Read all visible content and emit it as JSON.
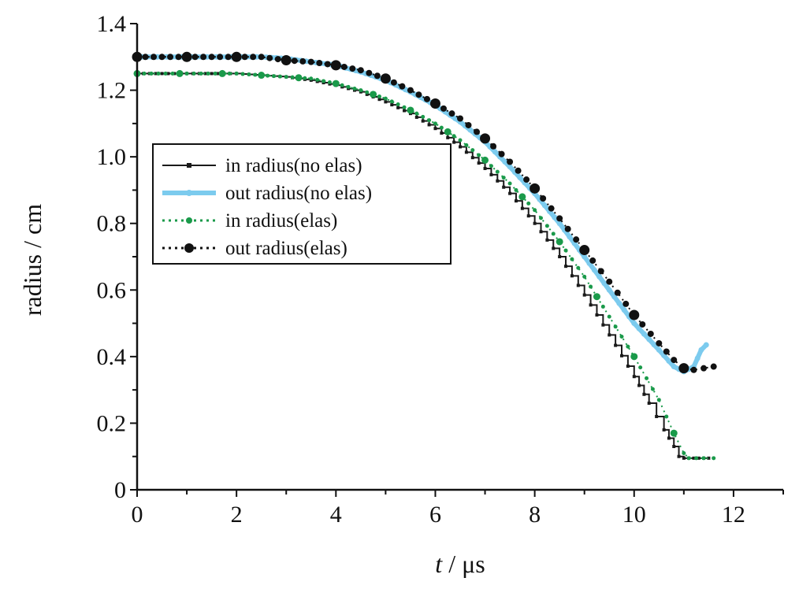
{
  "chart_data": {
    "type": "line",
    "title": "",
    "xlabel": "t / μs",
    "xlabel_var": "t",
    "xlabel_unit": " / μs",
    "ylabel": "radius / cm",
    "xlim": [
      0,
      13
    ],
    "ylim": [
      0,
      1.4
    ],
    "x_ticks": [
      "0",
      "2",
      "4",
      "6",
      "8",
      "10",
      "12"
    ],
    "y_ticks": [
      "0",
      "0.2",
      "0.4",
      "0.6",
      "0.8",
      "1.0",
      "1.2",
      "1.4"
    ],
    "grid": false,
    "legend_position": "center-left",
    "series": [
      {
        "name": "in radius(no elas)",
        "color": "#1a1a1a",
        "style": "solid-step",
        "marker": "square",
        "points": [
          [
            0,
            1.25
          ],
          [
            1,
            1.25
          ],
          [
            2,
            1.25
          ],
          [
            2.5,
            1.245
          ],
          [
            3,
            1.24
          ],
          [
            3.5,
            1.23
          ],
          [
            4,
            1.215
          ],
          [
            4.5,
            1.195
          ],
          [
            5,
            1.165
          ],
          [
            5.5,
            1.13
          ],
          [
            6,
            1.085
          ],
          [
            6.5,
            1.03
          ],
          [
            7,
            0.965
          ],
          [
            7.5,
            0.89
          ],
          [
            8,
            0.8
          ],
          [
            8.5,
            0.7
          ],
          [
            9,
            0.585
          ],
          [
            9.5,
            0.465
          ],
          [
            10,
            0.34
          ],
          [
            10.3,
            0.26
          ],
          [
            10.6,
            0.18
          ],
          [
            10.8,
            0.13
          ],
          [
            10.9,
            0.1
          ],
          [
            11,
            0.095
          ],
          [
            11.3,
            0.095
          ],
          [
            11.5,
            0.095
          ]
        ]
      },
      {
        "name": "out radius(no elas)",
        "color": "#7ccbee",
        "style": "thick",
        "marker": "circle",
        "points": [
          [
            0,
            1.3
          ],
          [
            1,
            1.3
          ],
          [
            2,
            1.3
          ],
          [
            2.5,
            1.3
          ],
          [
            3,
            1.295
          ],
          [
            3.5,
            1.285
          ],
          [
            4,
            1.275
          ],
          [
            4.5,
            1.255
          ],
          [
            5,
            1.23
          ],
          [
            5.5,
            1.195
          ],
          [
            6,
            1.155
          ],
          [
            6.5,
            1.105
          ],
          [
            7,
            1.045
          ],
          [
            7.5,
            0.97
          ],
          [
            8,
            0.89
          ],
          [
            8.5,
            0.8
          ],
          [
            9,
            0.7
          ],
          [
            9.5,
            0.6
          ],
          [
            10,
            0.5
          ],
          [
            10.5,
            0.42
          ],
          [
            10.8,
            0.37
          ],
          [
            11,
            0.355
          ],
          [
            11.2,
            0.37
          ],
          [
            11.35,
            0.42
          ],
          [
            11.45,
            0.435
          ]
        ]
      },
      {
        "name": "in radius(elas)",
        "color": "#1a9a4a",
        "style": "dotted",
        "marker": "circle",
        "points": [
          [
            0,
            1.25
          ],
          [
            1,
            1.25
          ],
          [
            2,
            1.25
          ],
          [
            2.5,
            1.245
          ],
          [
            3,
            1.24
          ],
          [
            3.5,
            1.235
          ],
          [
            4,
            1.22
          ],
          [
            4.5,
            1.2
          ],
          [
            5,
            1.175
          ],
          [
            5.5,
            1.14
          ],
          [
            6,
            1.1
          ],
          [
            6.5,
            1.05
          ],
          [
            7,
            0.99
          ],
          [
            7.5,
            0.92
          ],
          [
            8,
            0.84
          ],
          [
            8.5,
            0.745
          ],
          [
            9,
            0.64
          ],
          [
            9.5,
            0.52
          ],
          [
            10,
            0.4
          ],
          [
            10.5,
            0.27
          ],
          [
            10.8,
            0.17
          ],
          [
            11,
            0.11
          ],
          [
            11.1,
            0.095
          ],
          [
            11.4,
            0.095
          ],
          [
            11.6,
            0.095
          ]
        ]
      },
      {
        "name": "out radius(elas)",
        "color": "#111111",
        "style": "dotted",
        "marker": "circle",
        "points": [
          [
            0,
            1.3
          ],
          [
            1,
            1.3
          ],
          [
            2,
            1.3
          ],
          [
            2.5,
            1.3
          ],
          [
            3,
            1.29
          ],
          [
            3.5,
            1.285
          ],
          [
            4,
            1.275
          ],
          [
            4.5,
            1.26
          ],
          [
            5,
            1.235
          ],
          [
            5.5,
            1.2
          ],
          [
            6,
            1.16
          ],
          [
            6.5,
            1.115
          ],
          [
            7,
            1.055
          ],
          [
            7.5,
            0.985
          ],
          [
            8,
            0.905
          ],
          [
            8.5,
            0.815
          ],
          [
            9,
            0.72
          ],
          [
            9.5,
            0.625
          ],
          [
            10,
            0.525
          ],
          [
            10.5,
            0.44
          ],
          [
            10.8,
            0.39
          ],
          [
            11,
            0.365
          ],
          [
            11.2,
            0.36
          ],
          [
            11.4,
            0.365
          ],
          [
            11.6,
            0.37
          ]
        ]
      }
    ]
  }
}
